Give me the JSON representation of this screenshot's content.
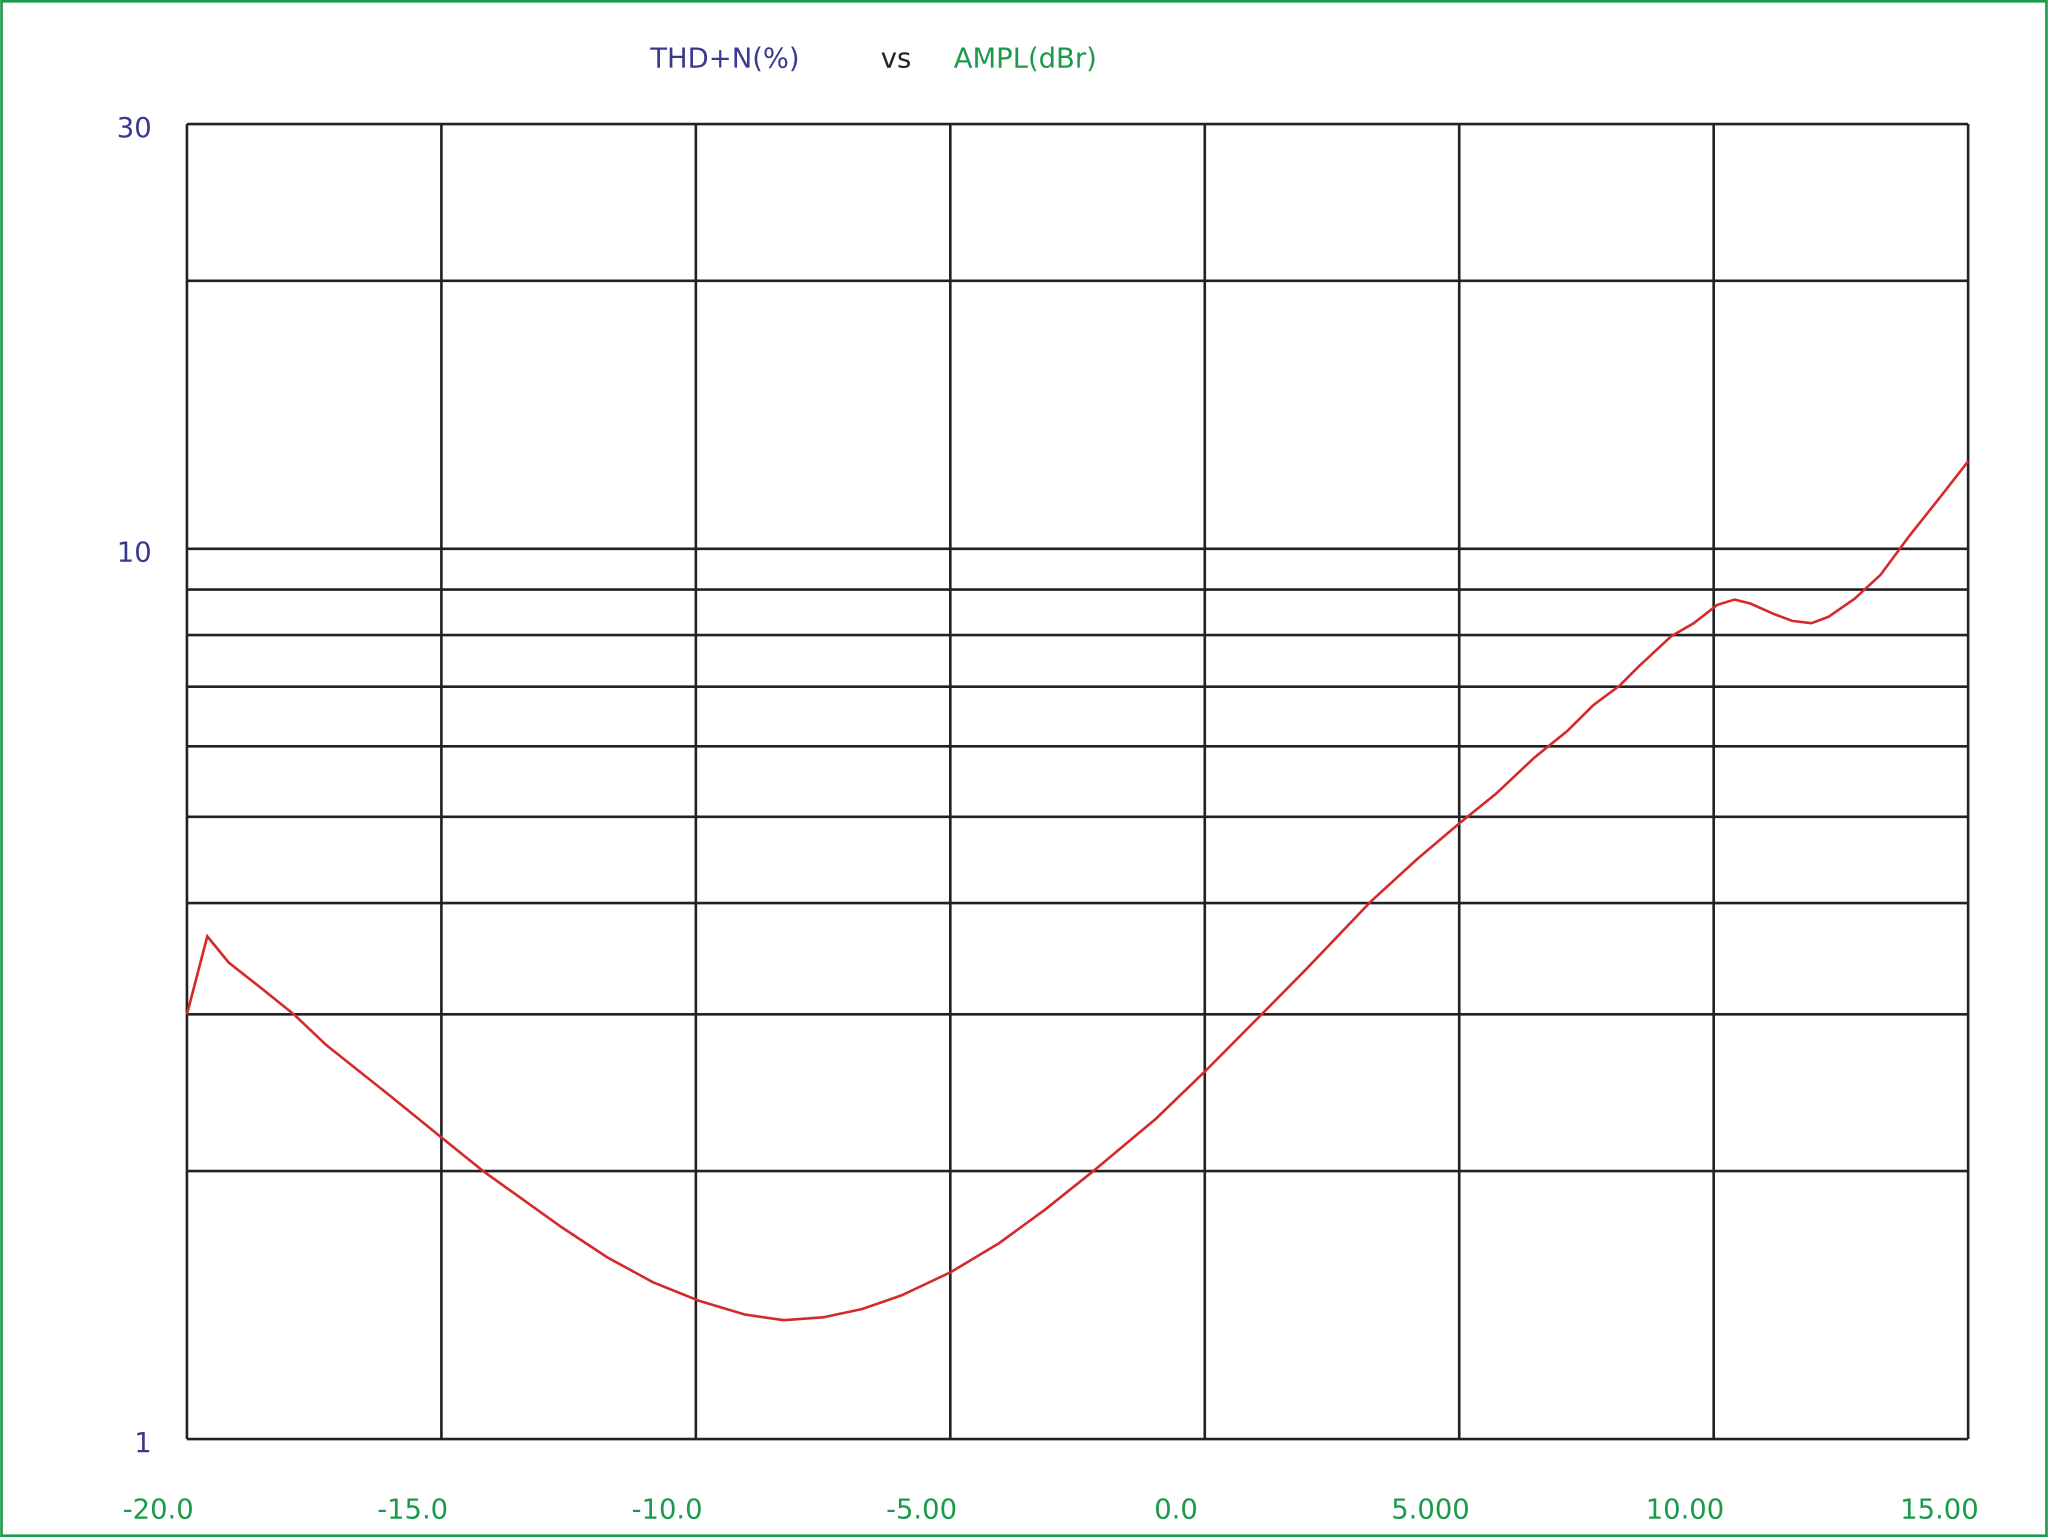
{
  "chart_data": {
    "type": "line",
    "title_parts": [
      {
        "text": "THD+N(%)",
        "color": "#3a3a8c"
      },
      {
        "text": "vs",
        "color": "#222222"
      },
      {
        "text": "AMPL(dBr)",
        "color": "#1a9a4a"
      }
    ],
    "x": [
      -20,
      -19.6,
      -19.18,
      -18.54,
      -17.9,
      -17.26,
      -15.97,
      -14.95,
      -14.18,
      -13.41,
      -12.64,
      -11.74,
      -10.84,
      -9.94,
      -9.04,
      -8.27,
      -7.5,
      -6.73,
      -5.96,
      -4.99,
      -4.04,
      -3.14,
      -2.19,
      -0.96,
      0.01,
      1.34,
      1.99,
      3.27,
      4.17,
      5.01,
      5.71,
      6.48,
      7.12,
      7.63,
      8.15,
      8.53,
      9.17,
      9.61,
      10.07,
      10.41,
      10.72,
      11.18,
      11.54,
      11.92,
      12.26,
      12.77,
      13.28,
      13.85,
      14.44,
      15.0
    ],
    "series": [
      {
        "color": "#d42a2a",
        "values": [
          3.0,
          3.67,
          3.43,
          3.21,
          3.0,
          2.77,
          2.42,
          2.17,
          2.0,
          1.86,
          1.73,
          1.6,
          1.5,
          1.43,
          1.38,
          1.36,
          1.37,
          1.4,
          1.45,
          1.54,
          1.66,
          1.81,
          2.0,
          2.29,
          2.59,
          3.09,
          3.37,
          4.02,
          4.48,
          4.92,
          5.3,
          5.83,
          6.24,
          6.67,
          7.02,
          7.38,
          7.98,
          8.25,
          8.65,
          8.77,
          8.68,
          8.45,
          8.3,
          8.25,
          8.39,
          8.79,
          9.35,
          10.35,
          11.41,
          12.54
        ]
      }
    ],
    "xlim": [
      -20,
      15
    ],
    "xticks": [
      {
        "value": -20,
        "label": "-20.0"
      },
      {
        "value": -15,
        "label": "-15.0"
      },
      {
        "value": -10,
        "label": "-10.0"
      },
      {
        "value": -5,
        "label": "-5.00"
      },
      {
        "value": 0,
        "label": "0.0"
      },
      {
        "value": 5,
        "label": "5.000"
      },
      {
        "value": 10,
        "label": "10.00"
      },
      {
        "value": 15,
        "label": "15.00"
      }
    ],
    "ylim": [
      1,
      30
    ],
    "yscale": "log",
    "yticks": [
      1,
      10,
      30
    ],
    "y_minor_ticks": [
      2,
      3,
      4,
      5,
      6,
      7,
      8,
      9,
      20
    ],
    "grid": true,
    "tick_label_colors": {
      "x": "#1a9a4a",
      "y": "#3a3a8c"
    }
  }
}
